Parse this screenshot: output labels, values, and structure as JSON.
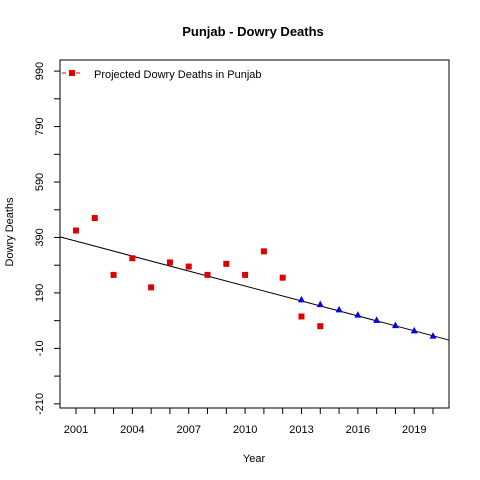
{
  "chart_data": {
    "type": "scatter",
    "title": "Punjab  -  Dowry Deaths",
    "xlabel": "Year",
    "ylabel": "Dowry Deaths",
    "xlim": [
      2000.15,
      2020.85
    ],
    "ylim": [
      -225,
      1030
    ],
    "x_ticks": [
      2001,
      2004,
      2007,
      2010,
      2013,
      2016,
      2019
    ],
    "x_tick_labels": [
      "2001",
      "2004",
      "2007",
      "2010",
      "2013",
      "2016",
      "2019"
    ],
    "y_ticks": [
      -210,
      -10,
      190,
      390,
      590,
      790,
      990
    ],
    "y_tick_labels": [
      "-210",
      "-10",
      "190",
      "390",
      "590",
      "790",
      "990"
    ],
    "y_minor_ticks": [
      -110,
      90,
      290,
      490,
      690,
      890
    ],
    "legend": {
      "position": "top-left",
      "label": "Projected  Dowry Deaths  in  Punjab"
    },
    "series": [
      {
        "name": "Projected  Dowry Deaths  in  Punjab",
        "color": "#dd0000",
        "marker": "square",
        "x": [
          2001,
          2002,
          2003,
          2004,
          2005,
          2006,
          2007,
          2008,
          2009,
          2010,
          2011,
          2012,
          2013,
          2014
        ],
        "y": [
          415,
          460,
          255,
          315,
          210,
          300,
          285,
          255,
          295,
          255,
          340,
          245,
          105,
          70
        ]
      },
      {
        "color": "#0000ee",
        "marker": "triangle",
        "x": [
          2013,
          2014,
          2015,
          2016,
          2017,
          2018,
          2019,
          2020
        ],
        "y": [
          165,
          148,
          129,
          110,
          91,
          72,
          53,
          34
        ]
      }
    ],
    "trend_line": {
      "color": "#000000",
      "x": [
        2000.15,
        2020.85
      ],
      "y": [
        392,
        20
      ]
    }
  }
}
